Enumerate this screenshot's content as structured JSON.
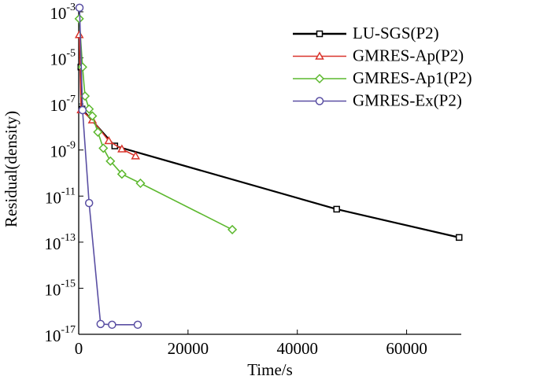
{
  "chart_data": {
    "type": "line",
    "x_label": "Time/s",
    "y_label": "Residual(density)",
    "xlim": [
      0,
      70000
    ],
    "xticks": [
      0,
      20000,
      40000,
      60000
    ],
    "ylim": [
      1e-17,
      0.001
    ],
    "log_y": true,
    "yticks": [
      {
        "value": 0.001,
        "label": "10-3"
      },
      {
        "value": 1e-05,
        "label": "10-5"
      },
      {
        "value": 1e-07,
        "label": "10-7"
      },
      {
        "value": 1e-09,
        "label": "10-9"
      },
      {
        "value": 1e-11,
        "label": "10-11"
      },
      {
        "value": 1e-13,
        "label": "10-13"
      },
      {
        "value": 1e-15,
        "label": "10-15"
      },
      {
        "value": 1e-17,
        "label": "10-17"
      }
    ],
    "legend": "upper right",
    "series": [
      {
        "name": "LU-SGS(P2)",
        "color": "#000000",
        "marker": "square",
        "x": [
          400,
          600,
          6600,
          47200,
          69600
        ],
        "values": [
          4e-06,
          6e-08,
          1.5e-09,
          2.7e-12,
          1.6e-13
        ]
      },
      {
        "name": "GMRES-Ap(P2)",
        "color": "#d9342b",
        "marker": "triangle",
        "x": [
          100,
          430,
          2500,
          5500,
          7900,
          10400
        ],
        "values": [
          0.0001,
          5.5e-08,
          2e-08,
          2.5e-09,
          1.1e-09,
          5.5e-10
        ]
      },
      {
        "name": "GMRES-Ap1(P2)",
        "color": "#5cb82e",
        "marker": "diamond",
        "x": [
          100,
          700,
          1150,
          1900,
          2500,
          3500,
          4500,
          5800,
          7900,
          11300,
          28100
        ],
        "values": [
          0.0005,
          4e-06,
          2.2e-07,
          6e-08,
          3e-08,
          6e-09,
          1.2e-09,
          3.3e-10,
          9e-11,
          3.6e-11,
          3.5e-13
        ]
      },
      {
        "name": "GMRES-Ex(P2)",
        "color": "#5a4fa3",
        "marker": "circle",
        "x": [
          150,
          700,
          1900,
          4000,
          6100,
          10800
        ],
        "values": [
          0.0015,
          5.4e-08,
          5e-12,
          2.8e-17,
          2.6e-17,
          2.6e-17
        ]
      }
    ]
  }
}
